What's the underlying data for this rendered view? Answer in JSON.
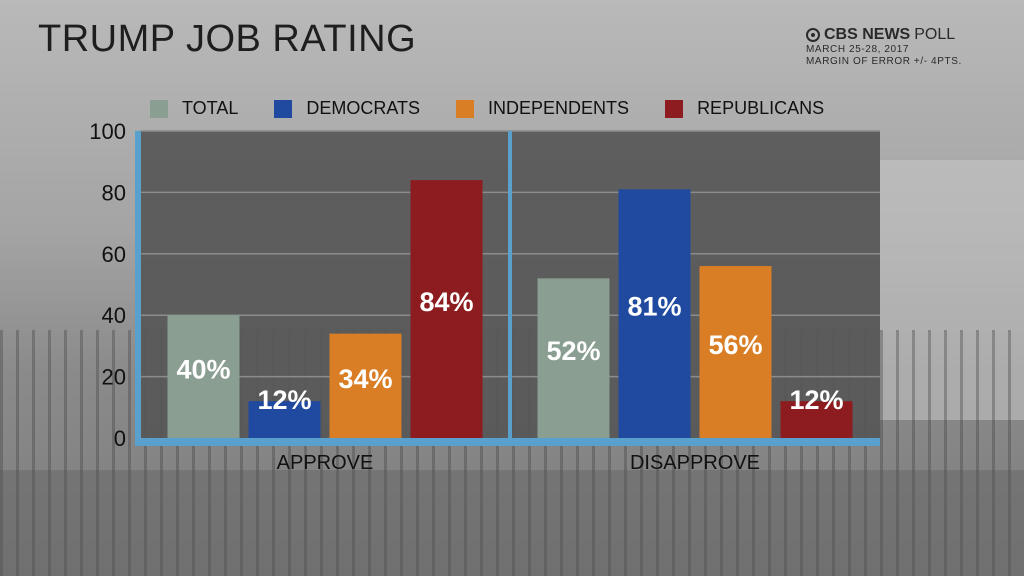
{
  "title": "TRUMP JOB RATING",
  "source": {
    "brand_bold": "CBS NEWS",
    "brand_rest": " POLL",
    "dates": "MARCH 25-28, 2017",
    "margin": "MARGIN OF ERROR +/- 4PTS."
  },
  "colors": {
    "total": "#8a9e92",
    "democrats": "#1f4aa0",
    "independents": "#d97e24",
    "republicans": "#8c1c1f",
    "plot_bg": "#575757",
    "axis": "#5aa0cc"
  },
  "chart_data": {
    "type": "bar",
    "categories": [
      "APPROVE",
      "DISAPPROVE"
    ],
    "series": [
      {
        "name": "TOTAL",
        "values": [
          40,
          52
        ]
      },
      {
        "name": "DEMOCRATS",
        "values": [
          12,
          81
        ]
      },
      {
        "name": "INDEPENDENTS",
        "values": [
          34,
          56
        ]
      },
      {
        "name": "REPUBLICANS",
        "values": [
          84,
          12
        ]
      }
    ],
    "data_labels": [
      [
        "40%",
        "52%"
      ],
      [
        "12%",
        "81%"
      ],
      [
        "34%",
        "56%"
      ],
      [
        "84%",
        "12%"
      ]
    ],
    "yticks": [
      0,
      20,
      40,
      60,
      80,
      100
    ],
    "ylim": [
      0,
      100
    ],
    "grid": true,
    "legend_position": "top"
  }
}
